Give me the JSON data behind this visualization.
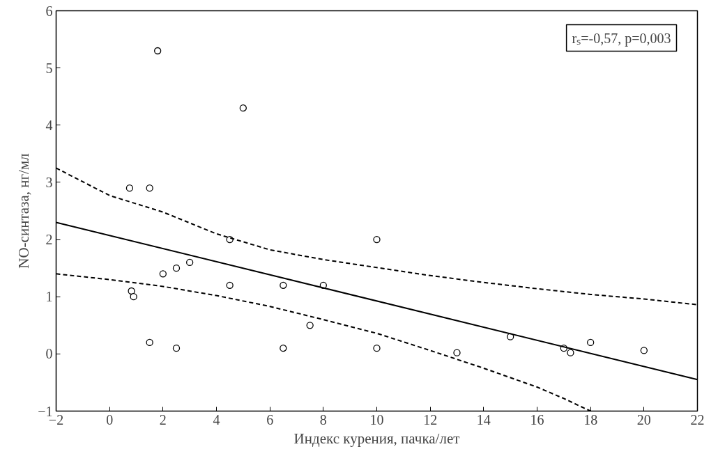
{
  "chart_data": {
    "type": "scatter",
    "xlabel": "Индекс курения, пачка/лет",
    "ylabel": "NO-синтаза, нг/мл",
    "annotations": [
      "rₛ=-0,57, p=0,003"
    ],
    "xlim": [
      -2,
      22
    ],
    "ylim": [
      -1,
      6
    ],
    "xticks": [
      -2,
      0,
      2,
      4,
      6,
      8,
      10,
      12,
      14,
      16,
      18,
      20,
      22
    ],
    "yticks": [
      -1,
      0,
      1,
      2,
      3,
      4,
      5,
      6
    ],
    "grid": false,
    "series": [
      {
        "marker": "circle",
        "color": "#000000",
        "x": [
          0.75,
          1.5,
          1.8,
          5.0,
          4.5,
          10.0,
          2.0,
          2.5,
          3.0,
          0.82,
          0.9,
          4.5,
          6.5,
          8.0,
          7.5,
          1.5,
          2.5,
          6.5,
          10.0,
          13.0,
          15.0,
          17.0,
          17.25,
          18.0,
          20.0
        ],
        "values": [
          2.9,
          2.9,
          5.3,
          4.3,
          2.0,
          2.0,
          1.4,
          1.5,
          1.6,
          1.1,
          1.0,
          1.2,
          1.2,
          1.2,
          0.5,
          0.2,
          0.1,
          0.1,
          0.1,
          0.02,
          0.3,
          0.1,
          0.02,
          0.2,
          0.06
        ]
      },
      {
        "type": "line",
        "line_style": "solid",
        "color": "#000000",
        "x": [
          -2,
          22
        ],
        "values": [
          2.3,
          -0.45
        ]
      },
      {
        "type": "line",
        "line_style": "dashed",
        "color": "#000000",
        "x": [
          -2,
          0,
          2,
          4,
          6,
          8,
          10,
          12,
          14,
          16,
          18,
          20,
          22
        ],
        "values": [
          3.25,
          2.77,
          2.48,
          2.1,
          1.82,
          1.65,
          1.51,
          1.37,
          1.25,
          1.14,
          1.04,
          0.96,
          0.86
        ]
      },
      {
        "type": "line",
        "line_style": "dashed",
        "color": "#000000",
        "x": [
          -2,
          0,
          2,
          4,
          6,
          8,
          10,
          12,
          14,
          16,
          17,
          18
        ],
        "values": [
          1.4,
          1.3,
          1.18,
          1.02,
          0.83,
          0.6,
          0.36,
          0.06,
          -0.25,
          -0.58,
          -0.78,
          -1.0
        ]
      }
    ]
  }
}
